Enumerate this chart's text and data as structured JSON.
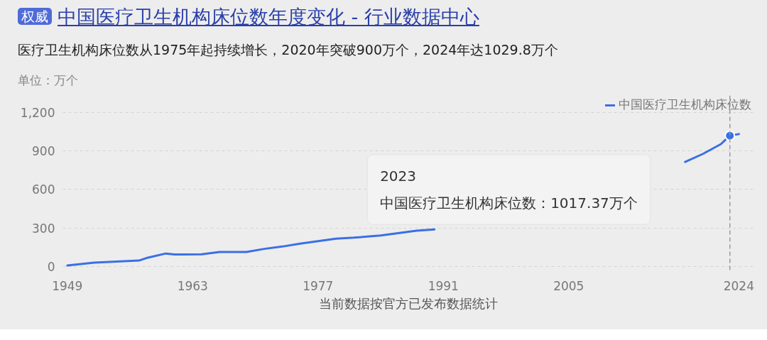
{
  "chart_data": {
    "type": "line",
    "title": "中国医疗卫生机构床位数年度变化 - 行业数据中心",
    "subtitle": "医疗卫生机构床位数从1975年起持续增长，2020年突破900万个，2024年达1029.8万个",
    "ylabel": "单位：万个",
    "xlabel": "当前数据按官方已发布数据统计",
    "x": [
      1949,
      1952,
      1957,
      1958,
      1960,
      1961,
      1964,
      1966,
      1969,
      1971,
      1973,
      1975,
      1979,
      1981,
      1984,
      1988,
      1990,
      2004,
      2018,
      2020,
      2022,
      2023,
      2024
    ],
    "series": [
      {
        "name": "中国医疗卫生机构床位数",
        "color": "#3a6fe6",
        "values": [
          8,
          30,
          46,
          69,
          101,
          93,
          95,
          113,
          113,
          137,
          155,
          178,
          216,
          224,
          241,
          278,
          288,
          null,
          813,
          876,
          952,
          1017.37,
          1029.8
        ]
      },
      {
        "type": "scatter",
        "color": "#3a6fe6",
        "x": [
          2023
        ],
        "values": [
          1017.37
        ]
      }
    ],
    "xlim": [
      1948.5,
      2025.6
    ],
    "xticks": [
      1949,
      1963,
      1977,
      1991,
      2005,
      2024
    ],
    "ylim": [
      -50,
      1330
    ],
    "yticks": [
      0,
      300,
      600,
      900,
      {
        "value": 1200,
        "label": "1,200"
      }
    ],
    "grid": "y",
    "legend": "top right",
    "line_style": "solid",
    "ref_lines": [
      {
        "axis": "x",
        "value": 2023,
        "line_style": "dashed",
        "color": "#999999"
      }
    ],
    "annotations": [
      "权威",
      "2023",
      "中国医疗卫生机构床位数：1017.37万个"
    ]
  }
}
